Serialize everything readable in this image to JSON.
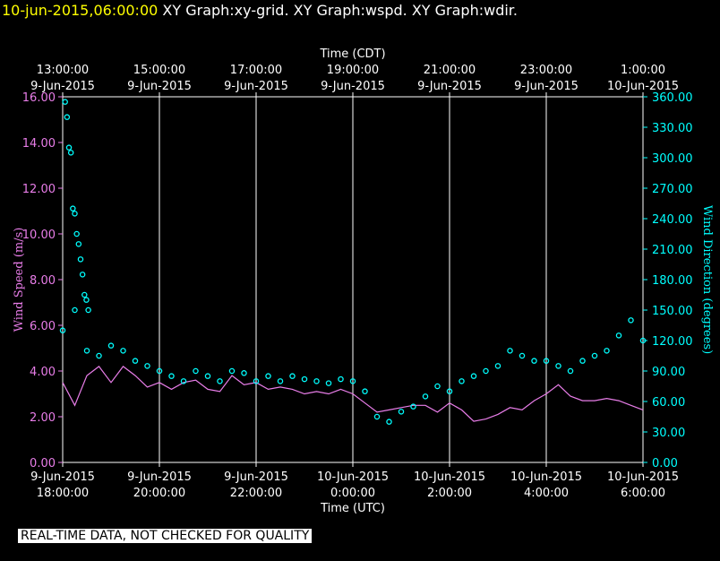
{
  "header": {
    "timestamp": "10-jun-2015,06:00:00",
    "titles": "XY Graph:xy-grid.  XY Graph:wspd.  XY Graph:wdir."
  },
  "footer": {
    "notice": "REAL-TIME DATA, NOT CHECKED FOR QUALITY"
  },
  "colors": {
    "background": "#000000",
    "wind_speed": "#e87de8",
    "wind_dir": "#00ffff",
    "axes": "#ffffff",
    "title_timestamp": "#ffff00"
  },
  "chart_data": {
    "type": "line",
    "title": "",
    "top_axis": {
      "label": "Time (CDT)",
      "ticks": [
        [
          "13:00:00",
          "9-Jun-2015"
        ],
        [
          "15:00:00",
          "9-Jun-2015"
        ],
        [
          "17:00:00",
          "9-Jun-2015"
        ],
        [
          "19:00:00",
          "9-Jun-2015"
        ],
        [
          "21:00:00",
          "9-Jun-2015"
        ],
        [
          "23:00:00",
          "9-Jun-2015"
        ],
        [
          "1:00:00",
          "10-Jun-2015"
        ]
      ]
    },
    "bottom_axis": {
      "label": "Time (UTC)",
      "ticks": [
        [
          "9-Jun-2015",
          "18:00:00"
        ],
        [
          "9-Jun-2015",
          "20:00:00"
        ],
        [
          "9-Jun-2015",
          "22:00:00"
        ],
        [
          "10-Jun-2015",
          "0:00:00"
        ],
        [
          "10-Jun-2015",
          "2:00:00"
        ],
        [
          "10-Jun-2015",
          "4:00:00"
        ],
        [
          "10-Jun-2015",
          "6:00:00"
        ]
      ],
      "range_hours_utc": [
        18,
        30
      ]
    },
    "y_left": {
      "label": "Wind Speed (m/s)",
      "ticks": [
        "0.00",
        "2.00",
        "4.00",
        "6.00",
        "8.00",
        "10.00",
        "12.00",
        "14.00",
        "16.00"
      ],
      "ylim": [
        0,
        16
      ]
    },
    "y_right": {
      "label": "Wind Direction (degrees)",
      "ticks": [
        "0.00",
        "30.00",
        "60.00",
        "90.00",
        "120.00",
        "150.00",
        "180.00",
        "210.00",
        "240.00",
        "270.00",
        "300.00",
        "330.00",
        "360.00"
      ],
      "ylim": [
        0,
        360
      ]
    },
    "grid": "vertical",
    "series": [
      {
        "name": "Wind Speed (m/s)",
        "style": "line",
        "x_hours_utc": [
          18.0,
          18.25,
          18.5,
          18.75,
          19.0,
          19.25,
          19.5,
          19.75,
          20.0,
          20.25,
          20.5,
          20.75,
          21.0,
          21.25,
          21.5,
          21.75,
          22.0,
          22.25,
          22.5,
          22.75,
          23.0,
          23.25,
          23.5,
          23.75,
          24.0,
          24.25,
          24.5,
          24.75,
          25.0,
          25.25,
          25.5,
          25.75,
          26.0,
          26.25,
          26.5,
          26.75,
          27.0,
          27.25,
          27.5,
          27.75,
          28.0,
          28.25,
          28.5,
          28.75,
          29.0,
          29.25,
          29.5,
          29.75,
          30.0
        ],
        "values": [
          3.5,
          2.5,
          3.8,
          4.2,
          3.5,
          4.2,
          3.8,
          3.3,
          3.5,
          3.2,
          3.5,
          3.6,
          3.2,
          3.1,
          3.8,
          3.4,
          3.5,
          3.2,
          3.3,
          3.2,
          3.0,
          3.1,
          3.0,
          3.2,
          3.0,
          2.6,
          2.2,
          2.3,
          2.4,
          2.5,
          2.5,
          2.2,
          2.6,
          2.3,
          1.8,
          1.9,
          2.1,
          2.4,
          2.3,
          2.7,
          3.0,
          3.4,
          2.9,
          2.7,
          2.7,
          2.8,
          2.7,
          2.5,
          2.3
        ]
      },
      {
        "name": "Wind Direction (degrees)",
        "style": "markers",
        "x_hours_utc": [
          18.0,
          18.25,
          18.5,
          18.75,
          19.0,
          19.25,
          19.5,
          19.75,
          20.0,
          20.25,
          20.5,
          20.75,
          21.0,
          21.25,
          21.5,
          21.75,
          22.0,
          22.25,
          22.5,
          22.75,
          23.0,
          23.25,
          23.5,
          23.75,
          24.0,
          24.25,
          24.5,
          24.75,
          25.0,
          25.25,
          25.5,
          25.75,
          26.0,
          26.25,
          26.5,
          26.75,
          27.0,
          27.25,
          27.5,
          27.75,
          28.0,
          28.25,
          28.5,
          28.75,
          29.0,
          29.25,
          29.5,
          29.75,
          30.0
        ],
        "values": [
          130,
          150,
          110,
          105,
          115,
          110,
          100,
          95,
          90,
          85,
          80,
          90,
          85,
          80,
          90,
          88,
          80,
          85,
          80,
          85,
          82,
          80,
          78,
          82,
          80,
          70,
          45,
          40,
          50,
          55,
          65,
          75,
          70,
          80,
          85,
          90,
          95,
          110,
          105,
          100,
          100,
          95,
          90,
          100,
          105,
          110,
          125,
          140,
          120
        ]
      }
    ],
    "annotations_note": "",
    "wind_dir_outliers_deg": [
      355,
      340,
      310,
      305,
      250,
      245,
      225,
      215,
      200,
      185,
      165,
      160,
      150
    ]
  }
}
